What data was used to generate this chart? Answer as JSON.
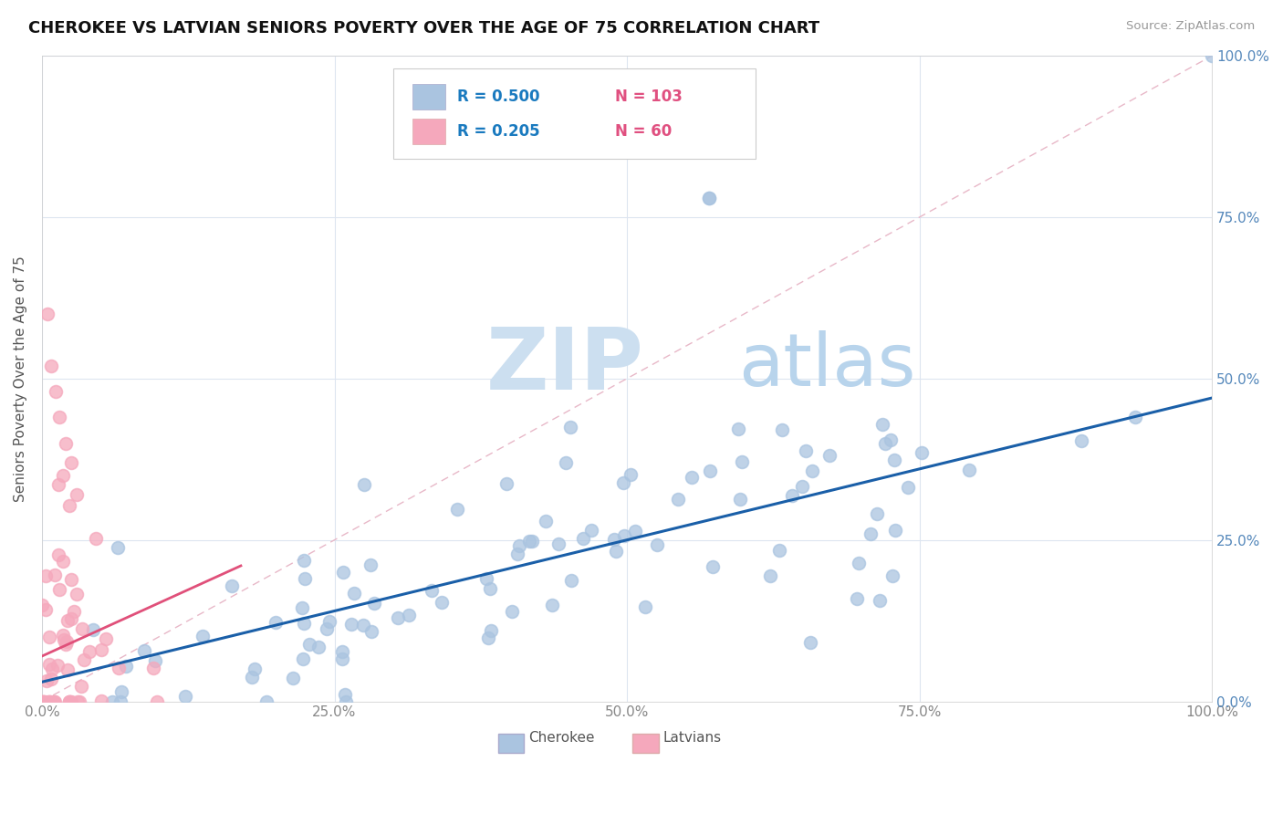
{
  "title": "CHEROKEE VS LATVIAN SENIORS POVERTY OVER THE AGE OF 75 CORRELATION CHART",
  "source": "Source: ZipAtlas.com",
  "ylabel": "Seniors Poverty Over the Age of 75",
  "xlim": [
    0,
    1
  ],
  "ylim": [
    0,
    1
  ],
  "xticks": [
    0.0,
    0.25,
    0.5,
    0.75,
    1.0
  ],
  "yticks": [
    0.0,
    0.25,
    0.5,
    0.75,
    1.0
  ],
  "xticklabels": [
    "0.0%",
    "25.0%",
    "50.0%",
    "75.0%",
    "100.0%"
  ],
  "yticklabels_right": [
    "0.0%",
    "25.0%",
    "50.0%",
    "75.0%",
    "100.0%"
  ],
  "cherokee_color": "#aac4e0",
  "latvian_color": "#f5a8bc",
  "cherokee_line_color": "#1a5fa8",
  "latvian_line_color": "#e0507a",
  "diag_line_color": "#e8b8c8",
  "cherokee_R": 0.5,
  "cherokee_N": 103,
  "latvian_R": 0.205,
  "latvian_N": 60,
  "legend_R_color": "#1a7abf",
  "legend_N_color": "#e05080",
  "watermark_ZIP_color": "#ccdff0",
  "watermark_atlas_color": "#b8d4ec",
  "grid_color": "#dde5f0",
  "background_color": "#ffffff",
  "tick_color": "#5588bb",
  "xtick_color": "#888888"
}
